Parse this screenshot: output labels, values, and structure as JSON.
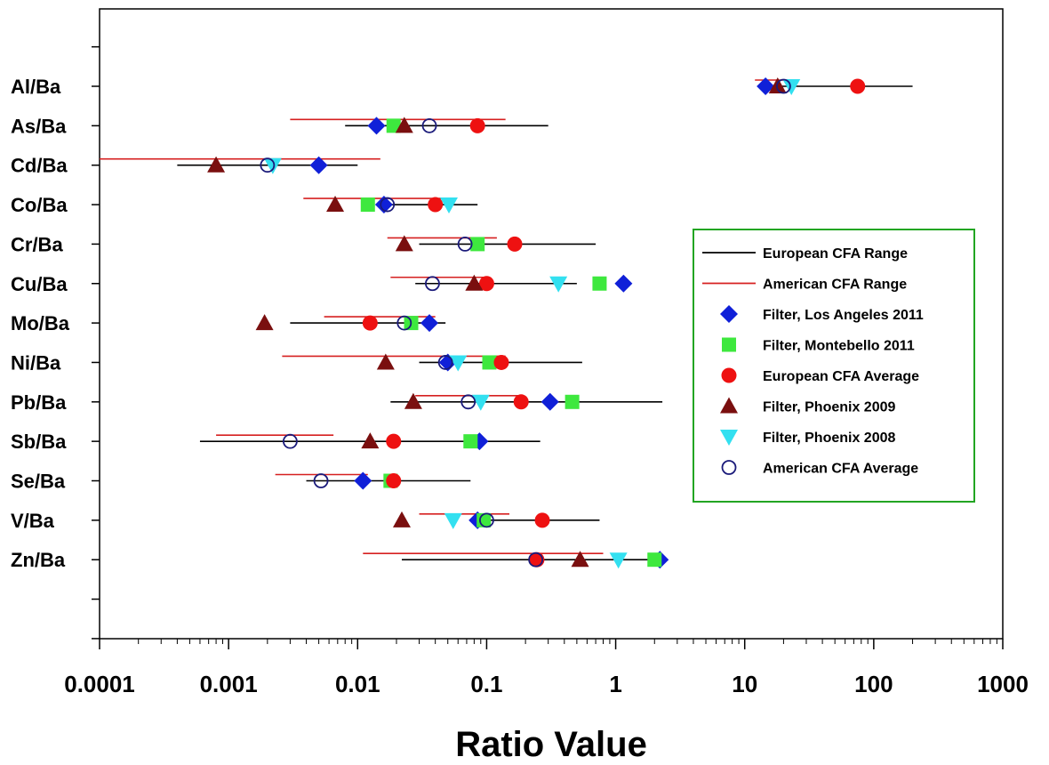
{
  "chart_data": {
    "type": "scatter",
    "xscale": "log",
    "xlim": [
      0.0001,
      1000
    ],
    "xticks": [
      "0.0001",
      "0.001",
      "0.01",
      "0.1",
      "1",
      "10",
      "100",
      "1000"
    ],
    "xlabel": "Ratio Value",
    "ylabel": "",
    "title": "",
    "grid": false,
    "legend_position": "right",
    "categories": [
      "Al/Ba",
      "As/Ba",
      "Cd/Ba",
      "Co/Ba",
      "Cr/Ba",
      "Cu/Ba",
      "Mo/Ba",
      "Ni/Ba",
      "Pb/Ba",
      "Sb/Ba",
      "Se/Ba",
      "V/Ba",
      "Zn/Ba"
    ],
    "ranges": [
      {
        "name": "European CFA Range",
        "color": "#000000",
        "values": [
          [
            14,
            200
          ],
          [
            0.008,
            0.3
          ],
          [
            0.0004,
            0.01
          ],
          [
            0.016,
            0.085
          ],
          [
            0.03,
            0.7
          ],
          [
            0.028,
            0.5
          ],
          [
            0.003,
            0.048
          ],
          [
            0.03,
            0.55
          ],
          [
            0.018,
            2.3
          ],
          [
            0.0006,
            0.26
          ],
          [
            0.004,
            0.075
          ],
          [
            0.09,
            0.75
          ],
          [
            0.022,
            1.8
          ]
        ]
      },
      {
        "name": "American CFA Range",
        "color": "#d62020",
        "values": [
          [
            12,
            22
          ],
          [
            0.003,
            0.14
          ],
          [
            0.0001,
            0.015
          ],
          [
            0.0038,
            0.045
          ],
          [
            0.017,
            0.12
          ],
          [
            0.018,
            0.1
          ],
          [
            0.0055,
            0.04
          ],
          [
            0.0026,
            0.14
          ],
          [
            0.028,
            0.19
          ],
          [
            0.0008,
            0.0065
          ],
          [
            0.0023,
            0.012
          ],
          [
            0.03,
            0.15
          ],
          [
            0.011,
            0.8
          ]
        ]
      }
    ],
    "series": [
      {
        "name": "Filter, Los Angeles 2011",
        "marker": "diamond",
        "color": "#1020d8",
        "values": [
          14.5,
          0.014,
          0.005,
          0.016,
          null,
          1.15,
          0.036,
          0.05,
          0.31,
          0.088,
          0.011,
          0.085,
          2.2
        ]
      },
      {
        "name": "Filter, Montebello 2011",
        "marker": "square",
        "color": "#3ee83e",
        "values": [
          null,
          0.019,
          null,
          0.012,
          0.085,
          0.75,
          0.026,
          0.105,
          0.46,
          0.075,
          0.018,
          0.095,
          2.0
        ]
      },
      {
        "name": "European CFA Average",
        "marker": "circle",
        "color": "#ee1111",
        "values": [
          75,
          0.085,
          null,
          0.04,
          0.165,
          0.1,
          0.0125,
          0.13,
          0.185,
          0.019,
          0.019,
          0.27,
          0.245
        ]
      },
      {
        "name": "Filter, Phoenix 2009",
        "marker": "triangle-up",
        "color": "#7a0f0f",
        "values": [
          18,
          0.023,
          0.0008,
          0.0067,
          0.023,
          0.08,
          0.0019,
          0.0165,
          0.027,
          0.0125,
          null,
          0.022,
          0.53
        ]
      },
      {
        "name": "Filter, Phoenix 2008",
        "marker": "triangle-down",
        "color": "#33e0f0",
        "values": [
          23,
          null,
          0.0022,
          0.051,
          null,
          0.36,
          null,
          0.06,
          0.09,
          null,
          null,
          0.055,
          1.05
        ]
      },
      {
        "name": "American CFA Average",
        "marker": "open-circle",
        "color": "#1a1a7a",
        "values": [
          20,
          0.036,
          0.002,
          0.017,
          0.068,
          0.038,
          0.023,
          0.048,
          0.072,
          0.003,
          0.0052,
          0.1,
          0.24
        ]
      }
    ]
  }
}
